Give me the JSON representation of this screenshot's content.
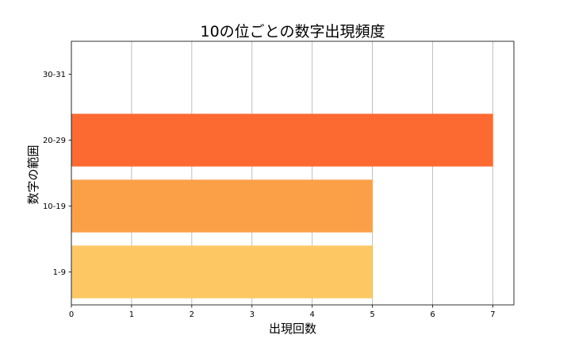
{
  "chart_data": {
    "type": "bar",
    "orientation": "horizontal",
    "title": "10の位ごとの数字出現頻度",
    "xlabel": "出現回数",
    "ylabel": "数字の範囲",
    "categories": [
      "1-9",
      "10-19",
      "20-29",
      "30-31"
    ],
    "values": [
      5,
      5,
      7,
      0
    ],
    "colors": [
      "#fdc864",
      "#fca048",
      "#fc6a32",
      "#fc6a32"
    ],
    "xlim": [
      0,
      7.35
    ],
    "xticks": [
      0,
      1,
      2,
      3,
      4,
      5,
      6,
      7
    ],
    "grid": "x",
    "grid_color": "#b0b0b0"
  }
}
